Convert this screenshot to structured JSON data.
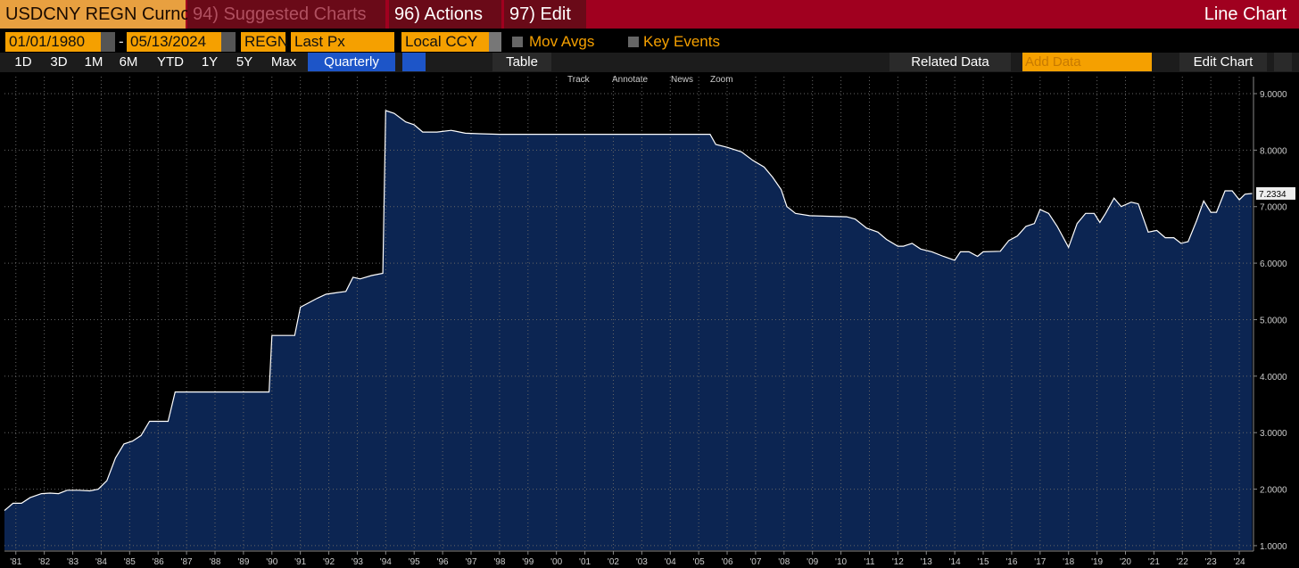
{
  "toolbar": {
    "ticker": "USDCNY REGN Curnc",
    "menus": [
      "94) Suggested Charts",
      "96) Actions",
      "97) Edit"
    ],
    "chart_kind": "Line Chart"
  },
  "controls": {
    "start_date": "01/01/1980",
    "dash": "-",
    "end_date": "05/13/2024",
    "source": "REGN",
    "field": "Last Px",
    "currency": "Local CCY",
    "checks": [
      "Mov Avgs",
      "Key Events"
    ]
  },
  "ranges": [
    "1D",
    "3D",
    "1M",
    "6M",
    "YTD",
    "1Y",
    "5Y",
    "Max"
  ],
  "period": "Quarterly",
  "table": "Table",
  "related": "Related Data",
  "add_data": "Add Data",
  "edit_chart": "Edit Chart",
  "chart_tools": [
    "Track",
    "Annotate",
    "News",
    "Zoom"
  ],
  "chart_data": {
    "type": "area",
    "series": [
      {
        "name": "USDCNY REGN Curnc",
        "color": "#ffffff",
        "fill": "#0c2552",
        "last_label": "7.2334",
        "x": [
          1980.6,
          1980.9,
          1981.2,
          1981.5,
          1981.9,
          1982.2,
          1982.5,
          1982.8,
          1983.2,
          1983.6,
          1983.9,
          1984.2,
          1984.5,
          1984.8,
          1985.1,
          1985.4,
          1985.7,
          1986.1,
          1986.35,
          1986.6,
          1987,
          1988,
          1989,
          1989.9,
          1990,
          1990.5,
          1990.8,
          1991,
          1991.3,
          1991.6,
          1991.9,
          1992.3,
          1992.6,
          1992.85,
          1993.1,
          1993.5,
          1993.9,
          1994,
          1994.3,
          1994.7,
          1995,
          1995.3,
          1995.8,
          1996.3,
          1996.8,
          1997.3,
          1998,
          2000,
          2002,
          2004,
          2005.4,
          2005.6,
          2006,
          2006.5,
          2006.9,
          2007.3,
          2007.6,
          2007.9,
          2008.1,
          2008.4,
          2008.9,
          2009.5,
          2010.2,
          2010.5,
          2010.9,
          2011.3,
          2011.6,
          2012,
          2012.2,
          2012.5,
          2012.8,
          2013.2,
          2013.6,
          2014,
          2014.2,
          2014.5,
          2014.8,
          2015,
          2015.6,
          2015.9,
          2016.2,
          2016.5,
          2016.8,
          2017,
          2017.3,
          2017.6,
          2018,
          2018.3,
          2018.6,
          2018.9,
          2019.1,
          2019.3,
          2019.6,
          2019.85,
          2020.2,
          2020.45,
          2020.8,
          2021.1,
          2021.4,
          2021.7,
          2021.95,
          2022.2,
          2022.5,
          2022.75,
          2023,
          2023.2,
          2023.5,
          2023.75,
          2024,
          2024.2,
          2024.45
        ],
        "values": [
          1.62,
          1.75,
          1.75,
          1.85,
          1.92,
          1.93,
          1.92,
          1.98,
          1.98,
          1.97,
          2.0,
          2.15,
          2.55,
          2.8,
          2.85,
          2.95,
          3.2,
          3.2,
          3.2,
          3.72,
          3.72,
          3.72,
          3.72,
          3.72,
          4.72,
          4.72,
          4.72,
          5.22,
          5.3,
          5.38,
          5.45,
          5.48,
          5.5,
          5.75,
          5.72,
          5.78,
          5.82,
          8.7,
          8.65,
          8.5,
          8.45,
          8.32,
          8.32,
          8.35,
          8.3,
          8.29,
          8.28,
          8.28,
          8.28,
          8.28,
          8.28,
          8.1,
          8.05,
          7.97,
          7.82,
          7.7,
          7.52,
          7.3,
          7.0,
          6.88,
          6.84,
          6.83,
          6.82,
          6.78,
          6.62,
          6.55,
          6.42,
          6.3,
          6.3,
          6.35,
          6.25,
          6.2,
          6.12,
          6.05,
          6.2,
          6.2,
          6.12,
          6.2,
          6.21,
          6.4,
          6.48,
          6.65,
          6.7,
          6.95,
          6.88,
          6.65,
          6.28,
          6.7,
          6.88,
          6.88,
          6.72,
          6.88,
          7.15,
          7.0,
          7.08,
          7.05,
          6.55,
          6.58,
          6.45,
          6.45,
          6.35,
          6.38,
          6.75,
          7.1,
          6.9,
          6.9,
          7.28,
          7.28,
          7.12,
          7.22,
          7.2334
        ]
      }
    ],
    "xlim": [
      1980.6,
      2024.5
    ],
    "xticks": [
      {
        "value": 1981,
        "label": "'81"
      },
      {
        "value": 1982,
        "label": "'82"
      },
      {
        "value": 1983,
        "label": "'83"
      },
      {
        "value": 1984,
        "label": "'84"
      },
      {
        "value": 1985,
        "label": "'85"
      },
      {
        "value": 1986,
        "label": "'86"
      },
      {
        "value": 1987,
        "label": "'87"
      },
      {
        "value": 1988,
        "label": "'88"
      },
      {
        "value": 1989,
        "label": "'89"
      },
      {
        "value": 1990,
        "label": "'90"
      },
      {
        "value": 1991,
        "label": "'91"
      },
      {
        "value": 1992,
        "label": "'92"
      },
      {
        "value": 1993,
        "label": "'93"
      },
      {
        "value": 1994,
        "label": "'94"
      },
      {
        "value": 1995,
        "label": "'95"
      },
      {
        "value": 1996,
        "label": "'96"
      },
      {
        "value": 1997,
        "label": "'97"
      },
      {
        "value": 1998,
        "label": "'98"
      },
      {
        "value": 1999,
        "label": "'99"
      },
      {
        "value": 2000,
        "label": "'00"
      },
      {
        "value": 2001,
        "label": "'01"
      },
      {
        "value": 2002,
        "label": "'02"
      },
      {
        "value": 2003,
        "label": "'03"
      },
      {
        "value": 2004,
        "label": "'04"
      },
      {
        "value": 2005,
        "label": "'05"
      },
      {
        "value": 2006,
        "label": "'06"
      },
      {
        "value": 2007,
        "label": "'07"
      },
      {
        "value": 2008,
        "label": "'08"
      },
      {
        "value": 2009,
        "label": "'09"
      },
      {
        "value": 2010,
        "label": "'10"
      },
      {
        "value": 2011,
        "label": "'11"
      },
      {
        "value": 2012,
        "label": "'12"
      },
      {
        "value": 2013,
        "label": "'13"
      },
      {
        "value": 2014,
        "label": "'14"
      },
      {
        "value": 2015,
        "label": "'15"
      },
      {
        "value": 2016,
        "label": "'16"
      },
      {
        "value": 2017,
        "label": "'17"
      },
      {
        "value": 2018,
        "label": "'18"
      },
      {
        "value": 2019,
        "label": "'19"
      },
      {
        "value": 2020,
        "label": "'20"
      },
      {
        "value": 2021,
        "label": "'21"
      },
      {
        "value": 2022,
        "label": "'22"
      },
      {
        "value": 2023,
        "label": "'23"
      },
      {
        "value": 2024,
        "label": "'24"
      }
    ],
    "ylim": [
      0.92,
      9.3
    ],
    "yticks": [
      {
        "value": 1,
        "label": "1.0000"
      },
      {
        "value": 2,
        "label": "2.0000"
      },
      {
        "value": 3,
        "label": "3.0000"
      },
      {
        "value": 4,
        "label": "4.0000"
      },
      {
        "value": 5,
        "label": "5.0000"
      },
      {
        "value": 6,
        "label": "6.0000"
      },
      {
        "value": 7,
        "label": "7.0000"
      },
      {
        "value": 8,
        "label": "8.0000"
      },
      {
        "value": 9,
        "label": "9.0000"
      }
    ],
    "grid": true
  }
}
